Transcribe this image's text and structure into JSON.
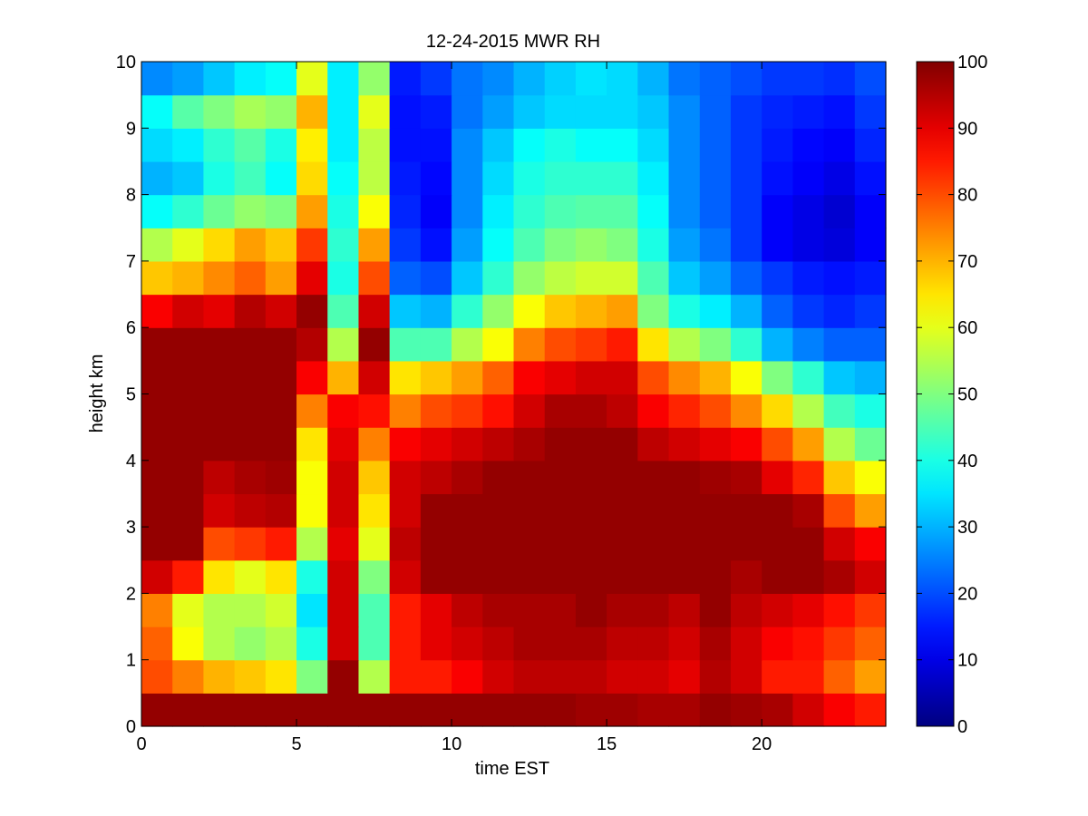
{
  "chart_data": {
    "type": "heatmap",
    "title": "12-24-2015 MWR RH",
    "xlabel": "time EST",
    "ylabel": "height km",
    "xlim": [
      0,
      24
    ],
    "ylim": [
      0,
      10
    ],
    "x_ticks": [
      0,
      5,
      10,
      15,
      20
    ],
    "y_ticks": [
      0,
      1,
      2,
      3,
      4,
      5,
      6,
      7,
      8,
      9,
      10
    ],
    "colorbar": {
      "colormap": "jet",
      "clim": [
        0,
        100
      ],
      "ticks": [
        0,
        10,
        20,
        30,
        40,
        50,
        60,
        70,
        80,
        90,
        100
      ]
    },
    "grid": false,
    "x": [
      0,
      1,
      2,
      3,
      4,
      5,
      6,
      7,
      8,
      9,
      10,
      11,
      12,
      13,
      14,
      15,
      16,
      17,
      18,
      19,
      20,
      21,
      22,
      23
    ],
    "y": [
      0,
      0.5,
      1,
      1.5,
      2,
      2.5,
      3,
      3.5,
      4,
      4.5,
      5,
      5.5,
      6,
      6.5,
      7,
      7.5,
      8,
      8.5,
      9,
      9.5
    ],
    "z": [
      [
        98,
        98,
        98,
        98,
        98,
        98,
        98,
        98,
        98,
        98,
        98,
        98,
        98,
        98,
        97,
        97,
        96,
        96,
        98,
        97,
        96,
        92,
        88,
        85
      ],
      [
        80,
        75,
        70,
        68,
        65,
        50,
        98,
        55,
        85,
        85,
        88,
        92,
        94,
        94,
        94,
        92,
        92,
        90,
        95,
        92,
        85,
        85,
        78,
        72
      ],
      [
        78,
        62,
        55,
        52,
        55,
        40,
        92,
        45,
        85,
        90,
        92,
        94,
        96,
        96,
        96,
        94,
        94,
        92,
        96,
        92,
        88,
        86,
        82,
        78
      ],
      [
        75,
        60,
        55,
        55,
        58,
        35,
        92,
        45,
        85,
        90,
        94,
        96,
        96,
        96,
        98,
        96,
        96,
        94,
        98,
        94,
        92,
        90,
        86,
        82
      ],
      [
        92,
        85,
        65,
        60,
        65,
        40,
        92,
        50,
        92,
        98,
        98,
        98,
        98,
        98,
        98,
        98,
        98,
        98,
        98,
        96,
        98,
        98,
        96,
        92
      ],
      [
        98,
        98,
        80,
        82,
        85,
        55,
        90,
        60,
        94,
        98,
        98,
        98,
        98,
        98,
        98,
        98,
        98,
        98,
        98,
        98,
        98,
        98,
        92,
        88
      ],
      [
        98,
        98,
        92,
        94,
        95,
        62,
        92,
        65,
        92,
        98,
        98,
        98,
        98,
        98,
        98,
        98,
        98,
        98,
        98,
        98,
        98,
        96,
        80,
        72
      ],
      [
        98,
        98,
        94,
        96,
        97,
        62,
        92,
        68,
        92,
        94,
        96,
        98,
        98,
        98,
        98,
        98,
        98,
        98,
        97,
        96,
        90,
        84,
        68,
        62
      ],
      [
        98,
        98,
        98,
        98,
        98,
        65,
        90,
        75,
        88,
        90,
        92,
        94,
        96,
        98,
        98,
        98,
        94,
        92,
        90,
        88,
        80,
        72,
        55,
        48
      ],
      [
        98,
        98,
        98,
        98,
        98,
        75,
        88,
        86,
        75,
        80,
        82,
        86,
        92,
        96,
        96,
        94,
        88,
        84,
        80,
        74,
        66,
        55,
        44,
        40
      ],
      [
        98,
        98,
        98,
        98,
        98,
        88,
        70,
        92,
        65,
        68,
        72,
        78,
        88,
        90,
        92,
        92,
        80,
        74,
        70,
        62,
        50,
        42,
        32,
        30
      ],
      [
        98,
        98,
        98,
        98,
        98,
        95,
        55,
        98,
        45,
        45,
        55,
        62,
        75,
        80,
        82,
        85,
        65,
        55,
        50,
        42,
        30,
        25,
        22,
        22
      ],
      [
        88,
        92,
        90,
        95,
        92,
        98,
        45,
        92,
        32,
        30,
        42,
        52,
        62,
        68,
        70,
        72,
        50,
        40,
        36,
        30,
        22,
        18,
        16,
        18
      ],
      [
        68,
        70,
        74,
        78,
        72,
        90,
        40,
        80,
        22,
        20,
        32,
        42,
        52,
        56,
        58,
        58,
        45,
        32,
        28,
        22,
        18,
        15,
        14,
        15
      ],
      [
        55,
        60,
        66,
        72,
        68,
        82,
        42,
        72,
        18,
        14,
        28,
        38,
        45,
        50,
        52,
        50,
        40,
        28,
        24,
        18,
        12,
        10,
        9,
        12
      ],
      [
        38,
        42,
        48,
        52,
        50,
        72,
        40,
        62,
        16,
        12,
        26,
        36,
        42,
        45,
        46,
        46,
        38,
        26,
        22,
        18,
        12,
        10,
        8,
        12
      ],
      [
        30,
        32,
        40,
        44,
        38,
        66,
        38,
        56,
        15,
        13,
        26,
        34,
        40,
        42,
        42,
        42,
        36,
        26,
        22,
        18,
        14,
        12,
        10,
        14
      ],
      [
        34,
        36,
        42,
        46,
        40,
        64,
        36,
        56,
        14,
        14,
        26,
        32,
        38,
        40,
        38,
        38,
        34,
        26,
        22,
        18,
        15,
        13,
        12,
        16
      ],
      [
        38,
        46,
        50,
        54,
        52,
        70,
        36,
        60,
        14,
        15,
        24,
        28,
        32,
        34,
        34,
        34,
        32,
        26,
        22,
        18,
        16,
        15,
        14,
        18
      ],
      [
        26,
        28,
        32,
        36,
        38,
        60,
        36,
        52,
        15,
        18,
        24,
        26,
        30,
        33,
        35,
        34,
        30,
        24,
        22,
        20,
        18,
        18,
        17,
        20
      ]
    ]
  }
}
